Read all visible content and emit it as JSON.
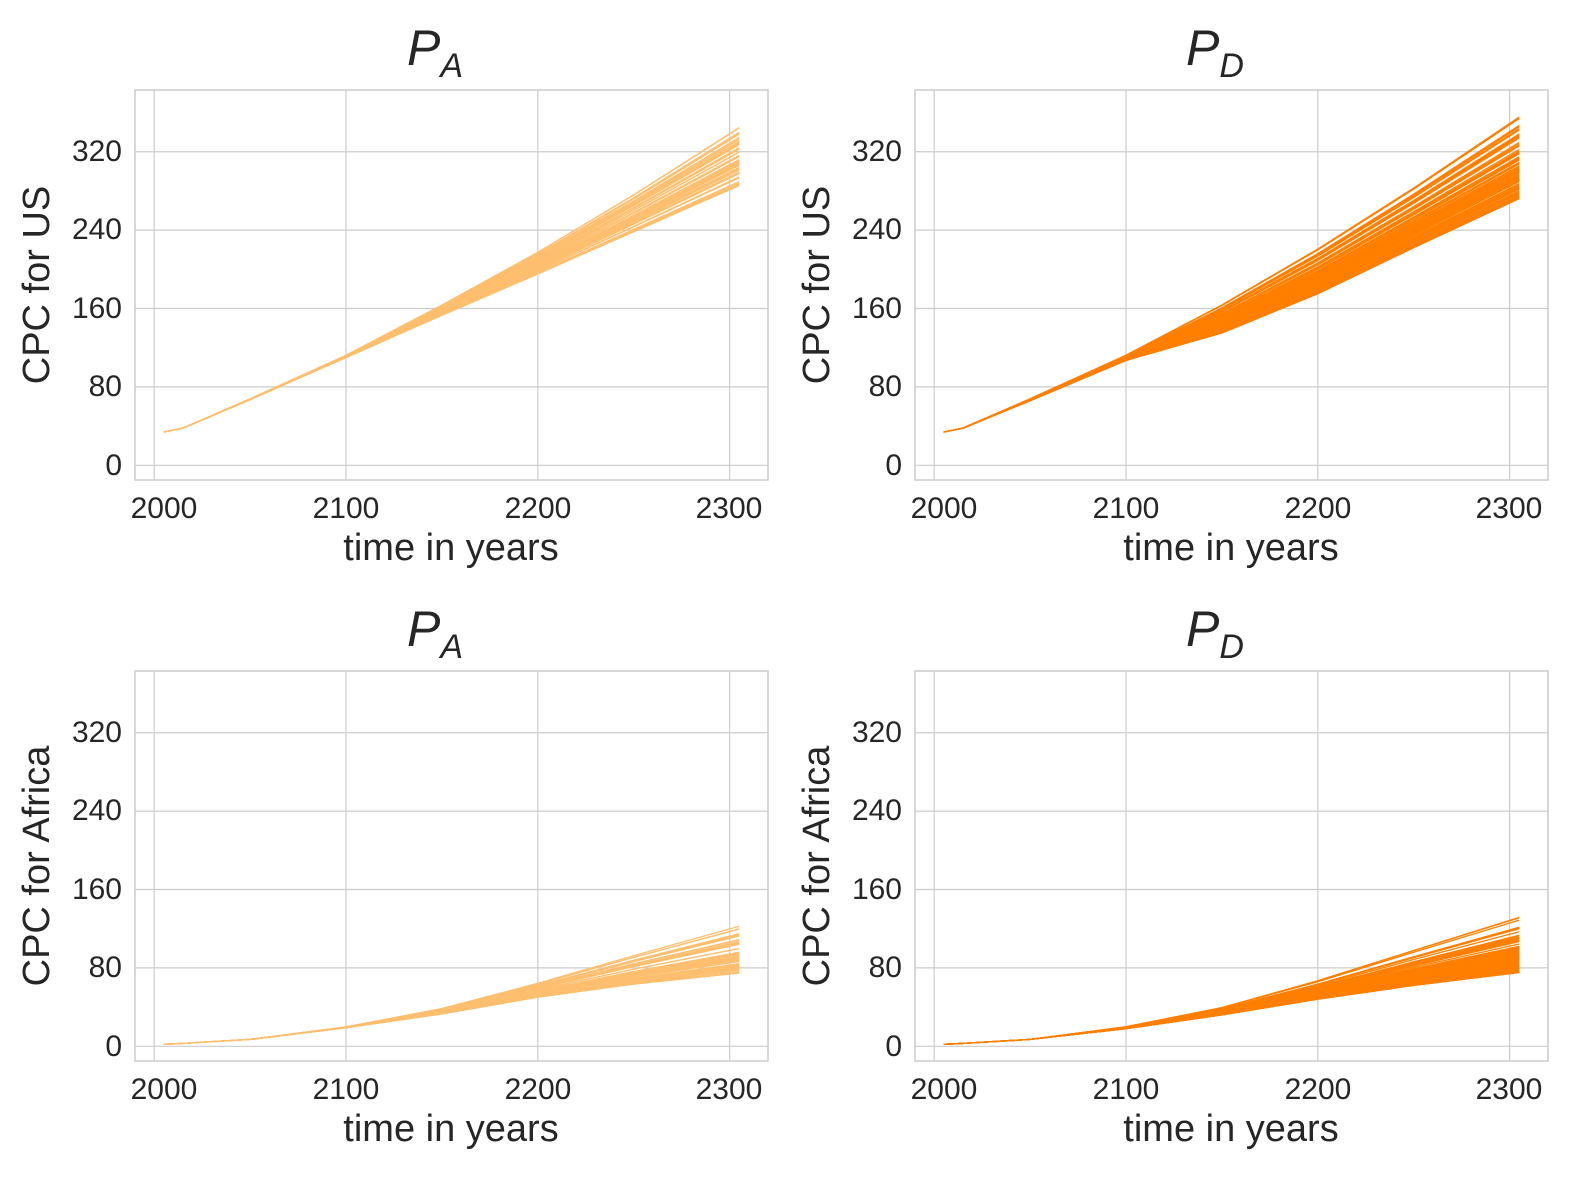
{
  "colors": {
    "P_A": "#fdbf6f",
    "P_D": "#ff7f00",
    "grid": "#cccccc",
    "text": "#262626"
  },
  "chart_data": [
    {
      "type": "line",
      "title": "P",
      "title_sub": "A",
      "xlabel": "time in years",
      "ylabel": "CPC for US",
      "xlim": [
        1990,
        2320
      ],
      "ylim": [
        -15,
        383
      ],
      "xticks": [
        "2000",
        "2100",
        "2200",
        "2300"
      ],
      "yticks": [
        "0",
        "80",
        "160",
        "240",
        "320"
      ],
      "grid": true,
      "color": "#fdbf6f",
      "ensemble_count": 60,
      "x": [
        2005,
        2015,
        2050,
        2100,
        2150,
        2200,
        2250,
        2305
      ],
      "series_upper": [
        34,
        38,
        68,
        113,
        167,
        225,
        289,
        365
      ],
      "series_lower": [
        34,
        38,
        67,
        110,
        153,
        195,
        238,
        285
      ]
    },
    {
      "type": "line",
      "title": "P",
      "title_sub": "D",
      "xlabel": "time in years",
      "ylabel": "CPC for US",
      "xlim": [
        1990,
        2320
      ],
      "ylim": [
        -15,
        383
      ],
      "xticks": [
        "2000",
        "2100",
        "2200",
        "2300"
      ],
      "yticks": [
        "0",
        "80",
        "160",
        "240",
        "320"
      ],
      "grid": true,
      "color": "#ff7f00",
      "ensemble_count": 100,
      "x": [
        2005,
        2015,
        2050,
        2100,
        2150,
        2200,
        2250,
        2305
      ],
      "series_upper": [
        34,
        38,
        68,
        113,
        167,
        226,
        290,
        365
      ],
      "series_lower": [
        34,
        38,
        66,
        107,
        135,
        175,
        222,
        272
      ]
    },
    {
      "type": "line",
      "title": "P",
      "title_sub": "A",
      "xlabel": "time in years",
      "ylabel": "CPC for Africa",
      "xlim": [
        1990,
        2320
      ],
      "ylim": [
        -15,
        383
      ],
      "xticks": [
        "2000",
        "2100",
        "2200",
        "2300"
      ],
      "yticks": [
        "0",
        "80",
        "160",
        "240",
        "320"
      ],
      "grid": true,
      "color": "#fdbf6f",
      "ensemble_count": 60,
      "x": [
        2005,
        2015,
        2050,
        2100,
        2150,
        2200,
        2250,
        2305
      ],
      "series_upper": [
        2,
        3,
        7,
        20,
        40,
        68,
        100,
        135
      ],
      "series_lower": [
        2,
        3,
        7,
        19,
        33,
        50,
        63,
        74
      ]
    },
    {
      "type": "line",
      "title": "P",
      "title_sub": "D",
      "xlabel": "time in years",
      "ylabel": "CPC for Africa",
      "xlim": [
        1990,
        2320
      ],
      "ylim": [
        -15,
        383
      ],
      "xticks": [
        "2000",
        "2100",
        "2200",
        "2300"
      ],
      "yticks": [
        "0",
        "80",
        "160",
        "240",
        "320"
      ],
      "grid": true,
      "color": "#ff7f00",
      "ensemble_count": 100,
      "x": [
        2005,
        2015,
        2050,
        2100,
        2150,
        2200,
        2250,
        2305
      ],
      "series_upper": [
        2,
        3,
        7,
        20,
        40,
        68,
        100,
        135
      ],
      "series_lower": [
        2,
        3,
        7,
        18,
        32,
        48,
        62,
        75
      ]
    }
  ]
}
